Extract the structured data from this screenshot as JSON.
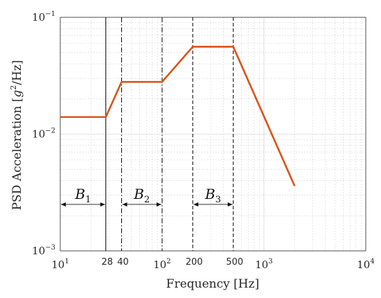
{
  "chart_data": {
    "type": "line",
    "xlabel": "Frequency [Hz]",
    "ylabel_main": "PSD Acceleration [",
    "ylabel_g": "g",
    "ylabel_exp": "2",
    "ylabel_tail": "/Hz]",
    "xscale": "log",
    "yscale": "log",
    "xlim": [
      10,
      10000
    ],
    "ylim": [
      0.001,
      0.1
    ],
    "grid": true,
    "x_major_ticks": [
      {
        "value": 10,
        "base": "10",
        "exp": "1"
      },
      {
        "value": 100,
        "base": "10",
        "exp": "2"
      },
      {
        "value": 1000,
        "base": "10",
        "exp": "3"
      },
      {
        "value": 10000,
        "base": "10",
        "exp": "4"
      }
    ],
    "y_major_ticks": [
      {
        "value": 0.001,
        "base": "10",
        "exp": "−3"
      },
      {
        "value": 0.01,
        "base": "10",
        "exp": "−2"
      },
      {
        "value": 0.1,
        "base": "10",
        "exp": "−1"
      }
    ],
    "x_extra_ticks": [
      {
        "value": 28,
        "label": "28"
      },
      {
        "value": 40,
        "label": "40"
      },
      {
        "value": 200,
        "label": "200"
      },
      {
        "value": 500,
        "label": "500"
      }
    ],
    "series": [
      {
        "color": "#d95319",
        "x": [
          10,
          28,
          40,
          100,
          200,
          500,
          2000
        ],
        "y": [
          0.014,
          0.014,
          0.028,
          0.028,
          0.056,
          0.056,
          0.0036
        ]
      }
    ],
    "vlines": [
      {
        "x": 28,
        "style": "solid"
      },
      {
        "x": 40,
        "style": "dashdot"
      },
      {
        "x": 100,
        "style": "dashdot"
      },
      {
        "x": 200,
        "style": "dashed"
      },
      {
        "x": 500,
        "style": "dashed"
      }
    ],
    "bands": [
      {
        "x1": 10,
        "x2": 28,
        "label": "B",
        "sub": "1",
        "y": 0.0025
      },
      {
        "x1": 40,
        "x2": 100,
        "label": "B",
        "sub": "2",
        "y": 0.0025
      },
      {
        "x1": 200,
        "x2": 500,
        "label": "B",
        "sub": "3",
        "y": 0.0025
      }
    ]
  }
}
